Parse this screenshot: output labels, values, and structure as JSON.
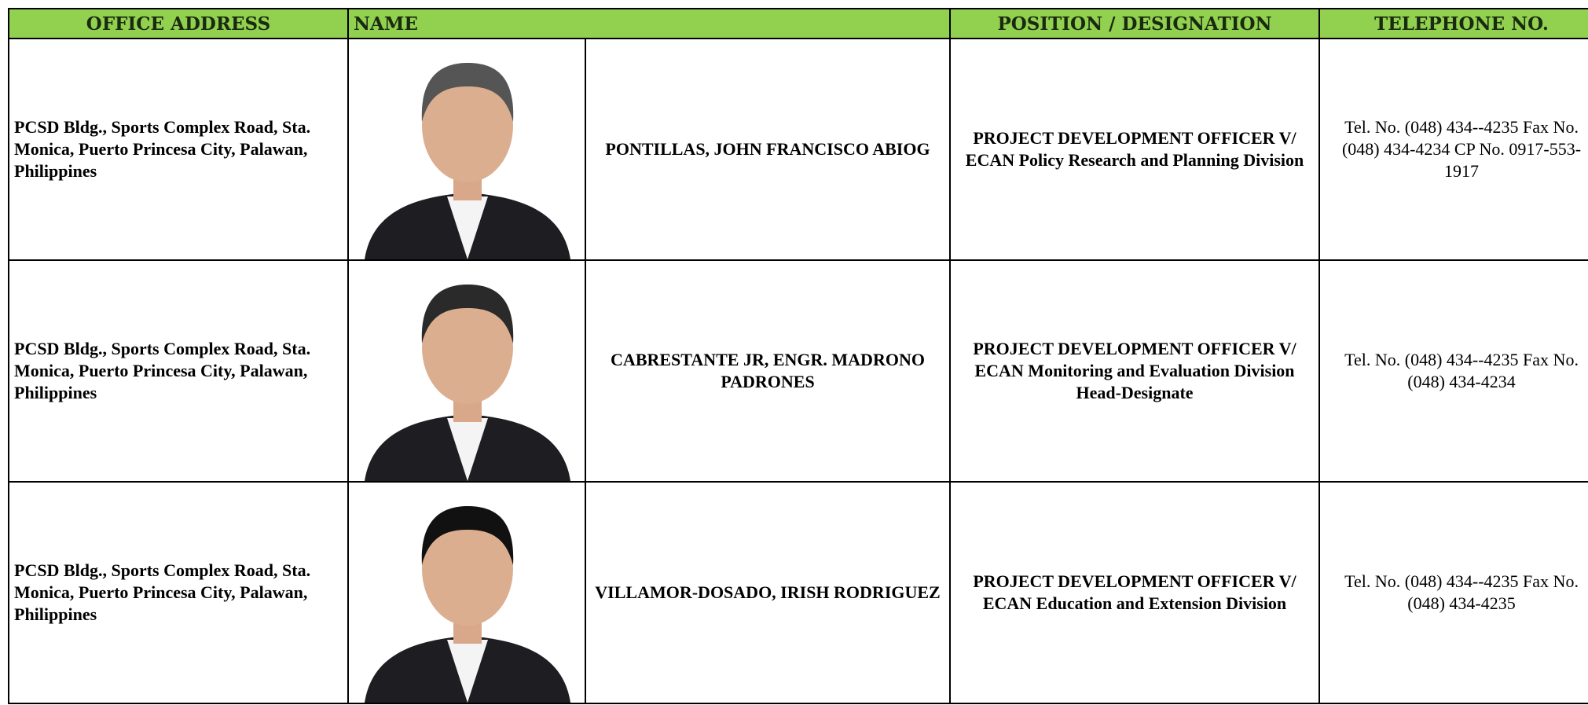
{
  "table": {
    "header": [
      "OFFICE ADDRESS",
      "NAME",
      "POSITION / DESIGNATION",
      "TELEPHONE NO."
    ],
    "rows": [
      {
        "address": "PCSD Bldg., Sports Complex Road, Sta. Monica, Puerto Princesa City, Palawan, Philippines",
        "name": "PONTILLAS, JOHN FRANCISCO ABIOG",
        "position": "PROJECT DEVELOPMENT OFFICER V/ ECAN Policy Research and Planning Division",
        "telephone": "Tel. No. (048) 434--4235  Fax No. (048) 434-4234 CP No. 0917-553-1917"
      },
      {
        "address": "PCSD Bldg., Sports Complex Road, Sta. Monica, Puerto Princesa City, Palawan, Philippines",
        "name": "CABRESTANTE JR, ENGR. MADRONO PADRONES",
        "position": "PROJECT DEVELOPMENT OFFICER V/ ECAN Monitoring and Evaluation Division Head-Designate",
        "telephone": "Tel. No. (048) 434--4235 Fax No. (048) 434-4234"
      },
      {
        "address": "PCSD Bldg., Sports Complex Road, Sta. Monica, Puerto Princesa City, Palawan, Philippines",
        "name": "VILLAMOR-DOSADO, IRISH RODRIGUEZ",
        "position": "PROJECT DEVELOPMENT OFFICER V/ ECAN Education and Extension Division",
        "telephone": "Tel. No. (048) 434--4235  Fax No. (048) 434-4235"
      }
    ]
  }
}
